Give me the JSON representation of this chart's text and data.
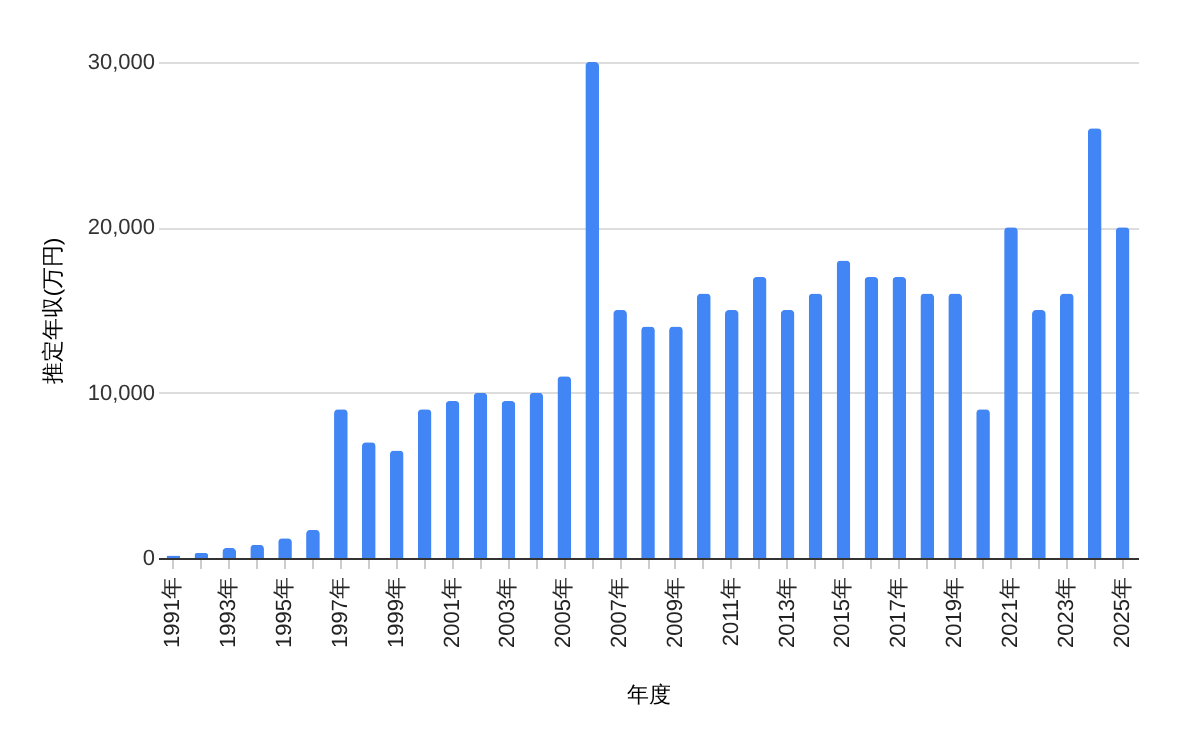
{
  "chart_data": {
    "type": "bar",
    "xlabel": "年度",
    "ylabel": "推定年収(万円)",
    "categories": [
      "1991年",
      null,
      "1993年",
      null,
      "1995年",
      null,
      "1997年",
      null,
      "1999年",
      null,
      "2001年",
      null,
      "2003年",
      null,
      "2005年",
      null,
      "2007年",
      null,
      "2009年",
      null,
      "2011年",
      null,
      "2013年",
      null,
      "2015年",
      null,
      "2017年",
      null,
      "2019年",
      null,
      "2021年",
      null,
      "2023年",
      null,
      "2025年"
    ],
    "values": [
      150,
      300,
      600,
      800,
      1200,
      1700,
      9000,
      7000,
      6500,
      9000,
      9500,
      10000,
      9500,
      10000,
      11000,
      30000,
      15000,
      14000,
      14000,
      16000,
      15000,
      17000,
      15000,
      16000,
      18000,
      17000,
      17000,
      16000,
      16000,
      9000,
      20000,
      15000,
      16000,
      26000,
      20000
    ],
    "color": "#4285f4",
    "ylim": [
      0,
      30000
    ],
    "yticks": [
      {
        "value": 0,
        "label": "0"
      },
      {
        "value": 10000,
        "label": "10,000"
      },
      {
        "value": 20000,
        "label": "20,000"
      },
      {
        "value": 30000,
        "label": "30,000"
      }
    ],
    "grid": "y"
  }
}
